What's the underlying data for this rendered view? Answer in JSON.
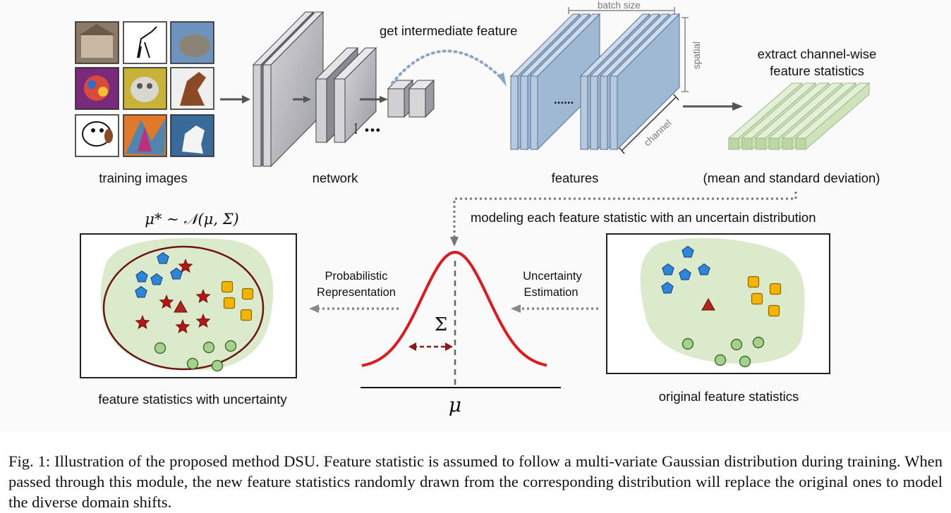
{
  "figure": {
    "stage_labels": {
      "training_images": "training images",
      "network": "network",
      "features": "features",
      "statistics": "(mean and standard deviation)"
    },
    "arrow_labels": {
      "intermediate": "get intermediate feature",
      "extract_line1": "extract channel-wise",
      "extract_line2": "feature statistics",
      "modeling": "modeling each feature statistic with an uncertain distribution",
      "prob_line1": "Probabilistic",
      "prob_line2": "Representation",
      "unc_line1": "Uncertainty",
      "unc_line2": "Estimation"
    },
    "dimension_labels": {
      "batch_size": "batch size",
      "spatial": "spatial",
      "channel": "channel"
    },
    "ellipsis": "•••",
    "feature_dots": "......",
    "formula": "μ* ∼ 𝒩(μ, Σ)",
    "sigma": "Σ",
    "mu": "μ",
    "panel_labels": {
      "with_uncertainty": "feature statistics with uncertainty",
      "original": "original feature statistics"
    },
    "colors": {
      "gaussian": "#e0191e",
      "ellipse": "#6b1414",
      "blob": "#dbeacb",
      "pentagon": "#2f86d6",
      "square": "#f4b400",
      "circle": "#a8d08d",
      "star": "#b01818",
      "feature_block": "#9fb8d3",
      "stat_block": "#cfe3bb",
      "network_block": "#bcbcc2"
    }
  },
  "caption": {
    "text": "Fig. 1: Illustration of the proposed method DSU. Feature statistic is assumed to follow a multi-variate Gaussian distribution during training. When passed through this module, the new feature statistics randomly drawn from the corresponding distribution will replace the original ones to model the diverse domain shifts."
  }
}
